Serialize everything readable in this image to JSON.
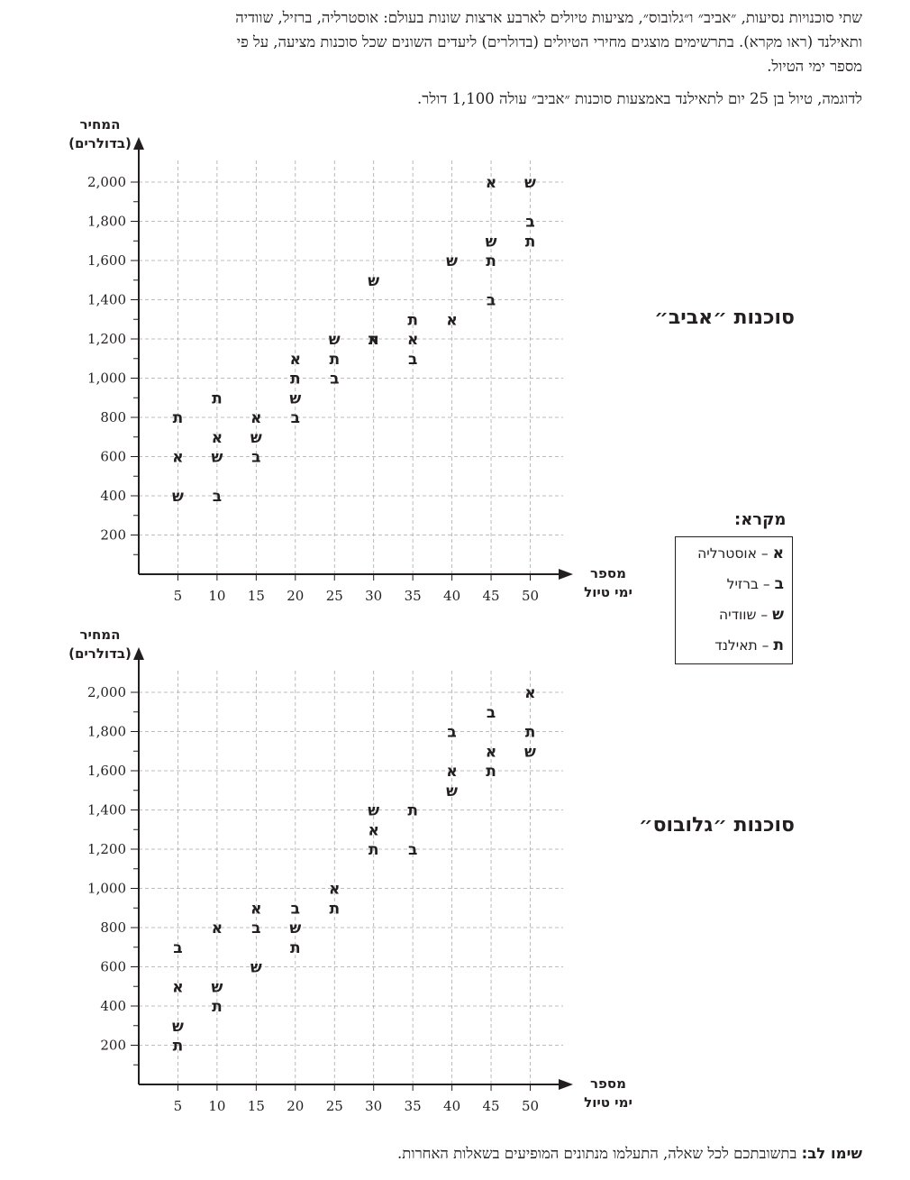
{
  "intro": {
    "lines": [
      "שתי סוכנויות נסיעות, ״אביב״ ו״גלובוס״, מציעות טיולים לארבע ארצות שונות בעולם: אוסטרליה, ברזיל, שוודיה",
      "ותאילנד (ראו מקרא).  בתרשימים מוצגים מחירי הטיולים (בדולרים) ליעדים השונים שכל סוכנות מציעה, על פי",
      "מספר ימי הטיול."
    ],
    "example": "לדוגמה, טיול בן 25 יום לתאילנד באמצעות סוכנות ״אביב״ עולה 1,100 דולר."
  },
  "legend": {
    "title": "מקרא:",
    "items": [
      {
        "code": "א",
        "name": "אוסטרליה"
      },
      {
        "code": "ב",
        "name": "ברזיל"
      },
      {
        "code": "ש",
        "name": "שוודיה"
      },
      {
        "code": "ת",
        "name": "תאילנד"
      }
    ]
  },
  "footer_note": {
    "label": "שימו לב:",
    "text": " בתשובתכם לכל שאלה, התעלמו מנתונים המופיעים בשאלות האחרות."
  },
  "chart_data": [
    {
      "type": "scatter",
      "title": "סוכנות ״אביב״",
      "ylabel_line1": "המחיר",
      "ylabel_line2": "(בדולרים)",
      "xlabel_line1": "מספר",
      "xlabel_line2": "ימי טיול",
      "x_ticks": [
        5,
        10,
        15,
        20,
        25,
        30,
        35,
        40,
        45,
        50
      ],
      "y_ticks": [
        200,
        400,
        600,
        800,
        1000,
        1200,
        1400,
        1600,
        1800,
        2000
      ],
      "y_tick_labels": [
        "200",
        "400",
        "600",
        "800",
        "1,000",
        "1,200",
        "1,400",
        "1,600",
        "1,800",
        "2,000"
      ],
      "xlim": [
        0,
        53
      ],
      "ylim": [
        0,
        2100
      ],
      "grid": true,
      "series": [
        {
          "name": "א",
          "points": [
            [
              5,
              600
            ],
            [
              10,
              700
            ],
            [
              15,
              800
            ],
            [
              20,
              1100
            ],
            [
              30,
              1200
            ],
            [
              35,
              1200
            ],
            [
              40,
              1300
            ],
            [
              45,
              2000
            ]
          ]
        },
        {
          "name": "ב",
          "points": [
            [
              10,
              400
            ],
            [
              15,
              600
            ],
            [
              20,
              800
            ],
            [
              25,
              1000
            ],
            [
              35,
              1100
            ],
            [
              45,
              1400
            ],
            [
              50,
              1800
            ]
          ]
        },
        {
          "name": "ש",
          "points": [
            [
              5,
              400
            ],
            [
              10,
              600
            ],
            [
              15,
              700
            ],
            [
              20,
              900
            ],
            [
              25,
              1200
            ],
            [
              30,
              1500
            ],
            [
              40,
              1600
            ],
            [
              45,
              1700
            ],
            [
              50,
              2000
            ]
          ]
        },
        {
          "name": "ת",
          "points": [
            [
              5,
              800
            ],
            [
              10,
              900
            ],
            [
              20,
              1000
            ],
            [
              25,
              1100
            ],
            [
              30,
              1200
            ],
            [
              35,
              1300
            ],
            [
              45,
              1600
            ],
            [
              50,
              1700
            ]
          ]
        }
      ]
    },
    {
      "type": "scatter",
      "title": "סוכנות ״גלובוס״",
      "ylabel_line1": "המחיר",
      "ylabel_line2": "(בדולרים)",
      "xlabel_line1": "מספר",
      "xlabel_line2": "ימי טיול",
      "x_ticks": [
        5,
        10,
        15,
        20,
        25,
        30,
        35,
        40,
        45,
        50
      ],
      "y_ticks": [
        200,
        400,
        600,
        800,
        1000,
        1200,
        1400,
        1600,
        1800,
        2000
      ],
      "y_tick_labels": [
        "200",
        "400",
        "600",
        "800",
        "1,000",
        "1,200",
        "1,400",
        "1,600",
        "1,800",
        "2,000"
      ],
      "xlim": [
        0,
        53
      ],
      "ylim": [
        0,
        2100
      ],
      "grid": true,
      "series": [
        {
          "name": "א",
          "points": [
            [
              5,
              500
            ],
            [
              10,
              800
            ],
            [
              15,
              900
            ],
            [
              25,
              1000
            ],
            [
              30,
              1300
            ],
            [
              40,
              1600
            ],
            [
              45,
              1700
            ],
            [
              50,
              2000
            ]
          ]
        },
        {
          "name": "ב",
          "points": [
            [
              5,
              700
            ],
            [
              15,
              800
            ],
            [
              20,
              900
            ],
            [
              35,
              1200
            ],
            [
              40,
              1800
            ],
            [
              45,
              1900
            ]
          ]
        },
        {
          "name": "ש",
          "points": [
            [
              5,
              300
            ],
            [
              10,
              500
            ],
            [
              15,
              600
            ],
            [
              20,
              800
            ],
            [
              30,
              1400
            ],
            [
              40,
              1500
            ],
            [
              50,
              1700
            ]
          ]
        },
        {
          "name": "ת",
          "points": [
            [
              5,
              200
            ],
            [
              10,
              400
            ],
            [
              20,
              700
            ],
            [
              25,
              900
            ],
            [
              30,
              1200
            ],
            [
              35,
              1400
            ],
            [
              45,
              1600
            ],
            [
              50,
              1800
            ]
          ]
        }
      ]
    }
  ]
}
